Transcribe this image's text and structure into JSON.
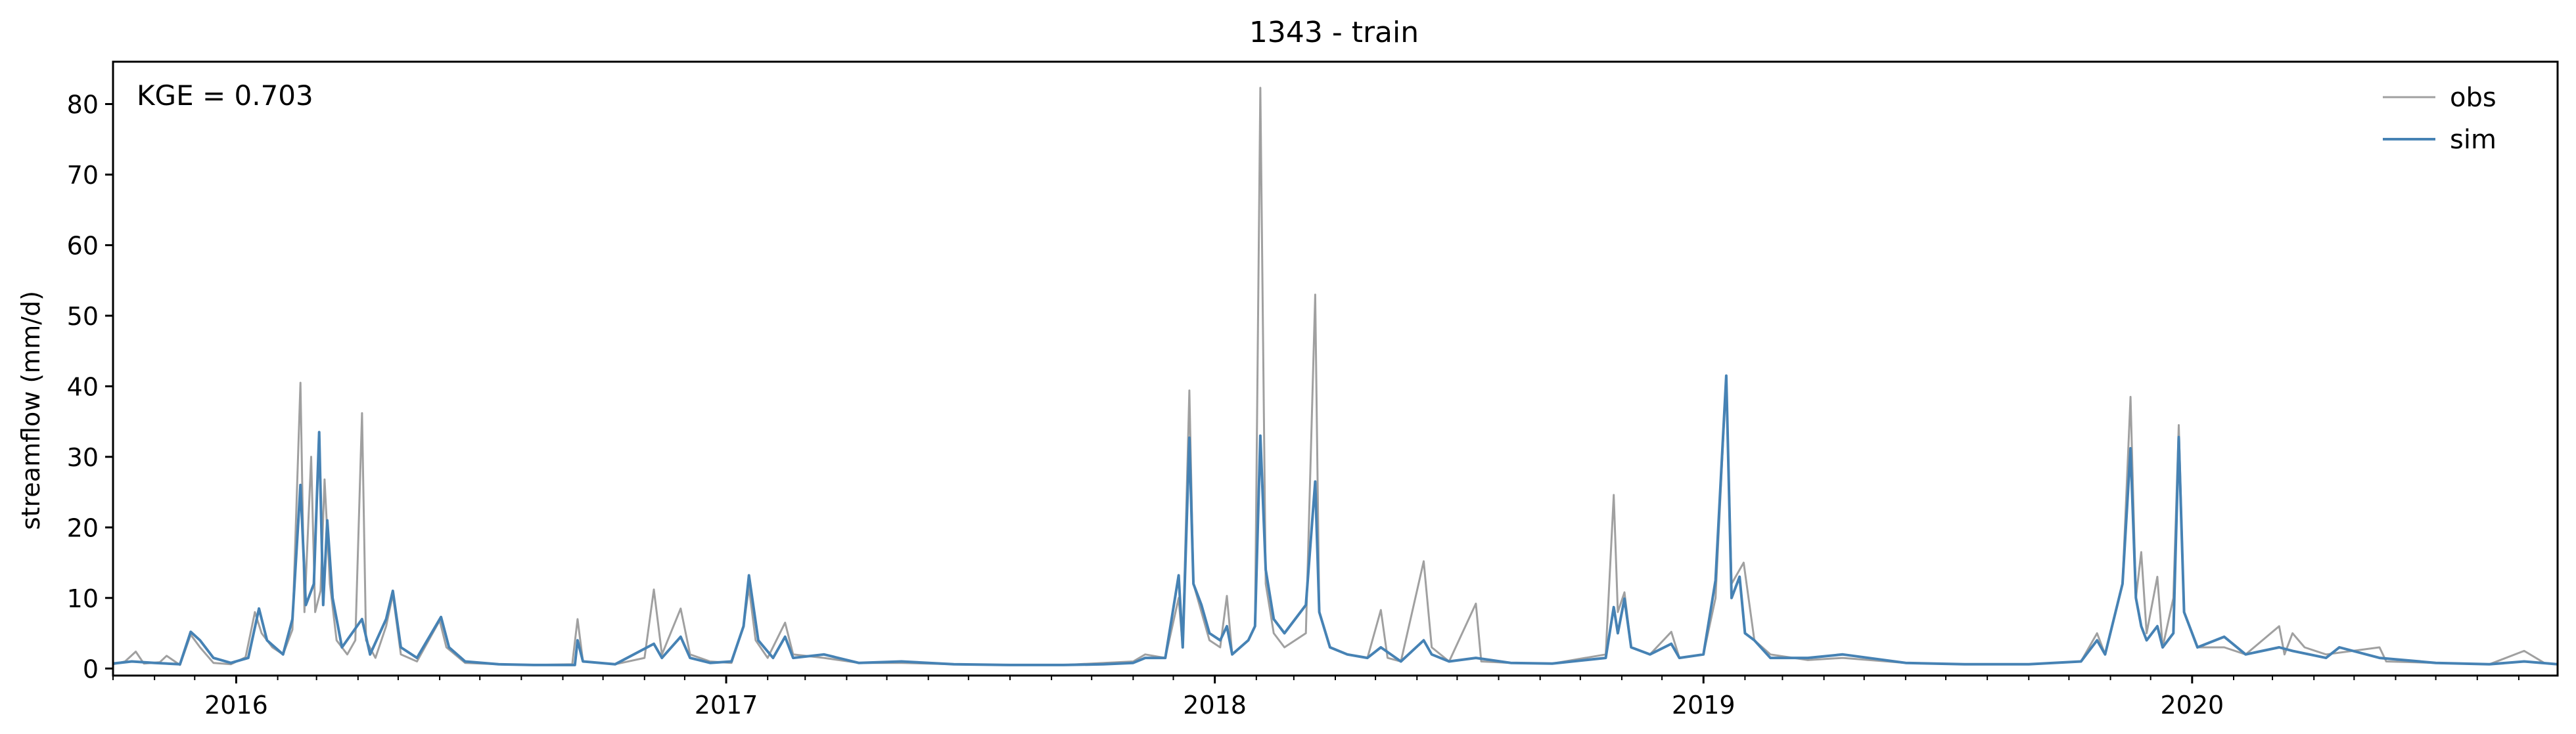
{
  "chart_data": {
    "type": "line",
    "title": "1343 - train",
    "xlabel": "",
    "ylabel": "streamflow (mm/d)",
    "annotation": "KGE = 0.703",
    "legend_placement": "top-right",
    "grid": false,
    "xlim": [
      "2015-10-01",
      "2020-09-30"
    ],
    "ylim": [
      -1,
      86
    ],
    "yticks": [
      0,
      10,
      20,
      30,
      40,
      50,
      60,
      70,
      80
    ],
    "xticks": [
      {
        "date": "2016-01-01",
        "label": "2016"
      },
      {
        "date": "2017-01-01",
        "label": "2017"
      },
      {
        "date": "2018-01-01",
        "label": "2018"
      },
      {
        "date": "2019-01-01",
        "label": "2019"
      },
      {
        "date": "2020-01-01",
        "label": "2020"
      }
    ],
    "series": [
      {
        "name": "obs",
        "color": "#a0a0a0",
        "points": [
          [
            "2015-10-01",
            0.6
          ],
          [
            "2015-10-10",
            1.0
          ],
          [
            "2015-10-18",
            2.4
          ],
          [
            "2015-10-24",
            0.7
          ],
          [
            "2015-11-05",
            0.9
          ],
          [
            "2015-11-10",
            1.8
          ],
          [
            "2015-11-20",
            0.5
          ],
          [
            "2015-11-28",
            4.8
          ],
          [
            "2015-12-05",
            3.0
          ],
          [
            "2015-12-15",
            0.8
          ],
          [
            "2015-12-28",
            0.6
          ],
          [
            "2016-01-08",
            1.6
          ],
          [
            "2016-01-15",
            8.0
          ],
          [
            "2016-01-20",
            5.0
          ],
          [
            "2016-01-28",
            3.0
          ],
          [
            "2016-02-05",
            2.0
          ],
          [
            "2016-02-12",
            5.5
          ],
          [
            "2016-02-18",
            40.5
          ],
          [
            "2016-02-21",
            8.0
          ],
          [
            "2016-02-26",
            30.0
          ],
          [
            "2016-02-29",
            8.0
          ],
          [
            "2016-03-04",
            11.0
          ],
          [
            "2016-03-07",
            26.8
          ],
          [
            "2016-03-11",
            12.0
          ],
          [
            "2016-03-16",
            4.0
          ],
          [
            "2016-03-24",
            2.0
          ],
          [
            "2016-03-30",
            4.0
          ],
          [
            "2016-04-04",
            36.2
          ],
          [
            "2016-04-07",
            4.0
          ],
          [
            "2016-04-14",
            1.5
          ],
          [
            "2016-04-22",
            6.0
          ],
          [
            "2016-04-27",
            10.5
          ],
          [
            "2016-05-03",
            2.0
          ],
          [
            "2016-05-15",
            1.0
          ],
          [
            "2016-06-01",
            6.8
          ],
          [
            "2016-06-06",
            3.0
          ],
          [
            "2016-06-20",
            0.8
          ],
          [
            "2016-07-15",
            0.6
          ],
          [
            "2016-08-10",
            0.5
          ],
          [
            "2016-09-08",
            0.6
          ],
          [
            "2016-09-12",
            7.0
          ],
          [
            "2016-09-16",
            1.0
          ],
          [
            "2016-10-10",
            0.6
          ],
          [
            "2016-11-01",
            1.5
          ],
          [
            "2016-11-08",
            11.2
          ],
          [
            "2016-11-14",
            2.0
          ],
          [
            "2016-11-28",
            8.5
          ],
          [
            "2016-12-05",
            2.0
          ],
          [
            "2016-12-20",
            1.0
          ],
          [
            "2017-01-05",
            0.8
          ],
          [
            "2017-01-14",
            6.0
          ],
          [
            "2017-01-18",
            11.5
          ],
          [
            "2017-01-23",
            4.0
          ],
          [
            "2017-02-01",
            1.5
          ],
          [
            "2017-02-14",
            6.5
          ],
          [
            "2017-02-20",
            2.0
          ],
          [
            "2017-03-15",
            1.5
          ],
          [
            "2017-04-10",
            0.8
          ],
          [
            "2017-05-12",
            0.8
          ],
          [
            "2017-06-20",
            0.6
          ],
          [
            "2017-08-01",
            0.5
          ],
          [
            "2017-09-10",
            0.5
          ],
          [
            "2017-10-10",
            0.8
          ],
          [
            "2017-11-01",
            1.0
          ],
          [
            "2017-11-10",
            2.0
          ],
          [
            "2017-11-25",
            1.5
          ],
          [
            "2017-12-05",
            10.0
          ],
          [
            "2017-12-08",
            3.0
          ],
          [
            "2017-12-13",
            39.4
          ],
          [
            "2017-12-16",
            12.0
          ],
          [
            "2017-12-22",
            8.0
          ],
          [
            "2017-12-28",
            4.0
          ],
          [
            "2018-01-05",
            3.0
          ],
          [
            "2018-01-10",
            10.3
          ],
          [
            "2018-01-14",
            2.0
          ],
          [
            "2018-01-26",
            4.0
          ],
          [
            "2018-01-31",
            6.0
          ],
          [
            "2018-02-04",
            82.3
          ],
          [
            "2018-02-08",
            12.0
          ],
          [
            "2018-02-14",
            5.0
          ],
          [
            "2018-02-22",
            3.0
          ],
          [
            "2018-03-10",
            5.0
          ],
          [
            "2018-03-17",
            53.0
          ],
          [
            "2018-03-20",
            8.0
          ],
          [
            "2018-03-28",
            3.0
          ],
          [
            "2018-04-10",
            2.0
          ],
          [
            "2018-04-25",
            1.5
          ],
          [
            "2018-05-05",
            8.3
          ],
          [
            "2018-05-10",
            1.5
          ],
          [
            "2018-05-20",
            1.0
          ],
          [
            "2018-06-06",
            15.2
          ],
          [
            "2018-06-12",
            3.0
          ],
          [
            "2018-06-25",
            1.0
          ],
          [
            "2018-07-15",
            9.2
          ],
          [
            "2018-07-19",
            1.0
          ],
          [
            "2018-08-10",
            0.8
          ],
          [
            "2018-09-10",
            0.7
          ],
          [
            "2018-10-20",
            2.0
          ],
          [
            "2018-10-26",
            24.6
          ],
          [
            "2018-10-29",
            8.0
          ],
          [
            "2018-11-03",
            10.8
          ],
          [
            "2018-11-08",
            3.0
          ],
          [
            "2018-11-22",
            2.0
          ],
          [
            "2018-12-08",
            5.2
          ],
          [
            "2018-12-14",
            1.5
          ],
          [
            "2019-01-01",
            2.0
          ],
          [
            "2019-01-10",
            10.0
          ],
          [
            "2019-01-18",
            41.5
          ],
          [
            "2019-01-22",
            12.0
          ],
          [
            "2019-01-31",
            15.0
          ],
          [
            "2019-02-08",
            4.0
          ],
          [
            "2019-02-20",
            2.0
          ],
          [
            "2019-03-20",
            1.2
          ],
          [
            "2019-04-15",
            1.5
          ],
          [
            "2019-06-01",
            0.8
          ],
          [
            "2019-07-15",
            0.6
          ],
          [
            "2019-09-01",
            0.6
          ],
          [
            "2019-10-10",
            1.0
          ],
          [
            "2019-10-22",
            5.0
          ],
          [
            "2019-10-28",
            2.0
          ],
          [
            "2019-11-10",
            12.0
          ],
          [
            "2019-11-16",
            38.5
          ],
          [
            "2019-11-20",
            10.0
          ],
          [
            "2019-11-24",
            16.5
          ],
          [
            "2019-11-28",
            5.0
          ],
          [
            "2019-12-06",
            13.0
          ],
          [
            "2019-12-10",
            3.0
          ],
          [
            "2019-12-18",
            10.0
          ],
          [
            "2019-12-22",
            34.5
          ],
          [
            "2019-12-26",
            8.0
          ],
          [
            "2020-01-05",
            3.0
          ],
          [
            "2020-01-25",
            3.0
          ],
          [
            "2020-02-10",
            2.0
          ],
          [
            "2020-03-06",
            6.0
          ],
          [
            "2020-03-10",
            2.0
          ],
          [
            "2020-03-16",
            5.0
          ],
          [
            "2020-03-25",
            3.0
          ],
          [
            "2020-04-10",
            2.0
          ],
          [
            "2020-05-20",
            3.0
          ],
          [
            "2020-05-25",
            1.0
          ],
          [
            "2020-07-01",
            0.8
          ],
          [
            "2020-08-10",
            0.6
          ],
          [
            "2020-09-05",
            2.5
          ],
          [
            "2020-09-20",
            0.8
          ],
          [
            "2020-09-30",
            0.6
          ]
        ]
      },
      {
        "name": "sim",
        "color": "#4682b4",
        "points": [
          [
            "2015-10-01",
            0.7
          ],
          [
            "2015-10-15",
            1.0
          ],
          [
            "2015-11-01",
            0.8
          ],
          [
            "2015-11-20",
            0.6
          ],
          [
            "2015-11-28",
            5.2
          ],
          [
            "2015-12-05",
            4.0
          ],
          [
            "2015-12-15",
            1.5
          ],
          [
            "2015-12-28",
            0.8
          ],
          [
            "2016-01-10",
            1.5
          ],
          [
            "2016-01-18",
            8.5
          ],
          [
            "2016-01-24",
            4.0
          ],
          [
            "2016-02-05",
            2.0
          ],
          [
            "2016-02-12",
            7.0
          ],
          [
            "2016-02-18",
            26.0
          ],
          [
            "2016-02-22",
            9.0
          ],
          [
            "2016-02-28",
            12.0
          ],
          [
            "2016-03-03",
            33.5
          ],
          [
            "2016-03-06",
            9.0
          ],
          [
            "2016-03-09",
            21.0
          ],
          [
            "2016-03-13",
            10.0
          ],
          [
            "2016-03-20",
            3.0
          ],
          [
            "2016-04-04",
            7.0
          ],
          [
            "2016-04-10",
            2.0
          ],
          [
            "2016-04-22",
            7.0
          ],
          [
            "2016-04-27",
            11.0
          ],
          [
            "2016-05-03",
            3.0
          ],
          [
            "2016-05-15",
            1.5
          ],
          [
            "2016-06-02",
            7.3
          ],
          [
            "2016-06-08",
            3.0
          ],
          [
            "2016-06-20",
            1.0
          ],
          [
            "2016-07-15",
            0.6
          ],
          [
            "2016-08-10",
            0.5
          ],
          [
            "2016-09-10",
            0.5
          ],
          [
            "2016-09-12",
            4.0
          ],
          [
            "2016-09-16",
            1.0
          ],
          [
            "2016-10-10",
            0.6
          ],
          [
            "2016-11-08",
            3.5
          ],
          [
            "2016-11-14",
            1.5
          ],
          [
            "2016-11-28",
            4.5
          ],
          [
            "2016-12-05",
            1.5
          ],
          [
            "2016-12-20",
            0.8
          ],
          [
            "2017-01-05",
            1.0
          ],
          [
            "2017-01-14",
            6.0
          ],
          [
            "2017-01-18",
            13.2
          ],
          [
            "2017-01-25",
            4.0
          ],
          [
            "2017-02-05",
            1.5
          ],
          [
            "2017-02-14",
            4.5
          ],
          [
            "2017-02-20",
            1.5
          ],
          [
            "2017-03-15",
            2.0
          ],
          [
            "2017-04-10",
            0.8
          ],
          [
            "2017-05-12",
            1.0
          ],
          [
            "2017-06-20",
            0.6
          ],
          [
            "2017-08-01",
            0.5
          ],
          [
            "2017-09-10",
            0.5
          ],
          [
            "2017-10-10",
            0.6
          ],
          [
            "2017-11-01",
            0.8
          ],
          [
            "2017-11-10",
            1.5
          ],
          [
            "2017-11-25",
            1.5
          ],
          [
            "2017-12-05",
            13.2
          ],
          [
            "2017-12-08",
            3.0
          ],
          [
            "2017-12-13",
            32.7
          ],
          [
            "2017-12-16",
            12.0
          ],
          [
            "2017-12-22",
            9.0
          ],
          [
            "2017-12-28",
            5.0
          ],
          [
            "2018-01-05",
            4.0
          ],
          [
            "2018-01-10",
            6.0
          ],
          [
            "2018-01-14",
            2.0
          ],
          [
            "2018-01-26",
            4.0
          ],
          [
            "2018-01-31",
            6.0
          ],
          [
            "2018-02-04",
            33.0
          ],
          [
            "2018-02-08",
            14.0
          ],
          [
            "2018-02-14",
            7.0
          ],
          [
            "2018-02-22",
            5.0
          ],
          [
            "2018-03-10",
            9.0
          ],
          [
            "2018-03-17",
            26.5
          ],
          [
            "2018-03-20",
            8.0
          ],
          [
            "2018-03-28",
            3.0
          ],
          [
            "2018-04-10",
            2.0
          ],
          [
            "2018-04-25",
            1.5
          ],
          [
            "2018-05-05",
            3.0
          ],
          [
            "2018-05-20",
            1.0
          ],
          [
            "2018-06-06",
            4.0
          ],
          [
            "2018-06-12",
            2.0
          ],
          [
            "2018-06-25",
            1.0
          ],
          [
            "2018-07-15",
            1.5
          ],
          [
            "2018-08-10",
            0.8
          ],
          [
            "2018-09-10",
            0.7
          ],
          [
            "2018-10-20",
            1.5
          ],
          [
            "2018-10-26",
            8.7
          ],
          [
            "2018-10-29",
            5.0
          ],
          [
            "2018-11-03",
            9.9
          ],
          [
            "2018-11-08",
            3.0
          ],
          [
            "2018-11-22",
            2.0
          ],
          [
            "2018-12-08",
            3.5
          ],
          [
            "2018-12-14",
            1.5
          ],
          [
            "2019-01-01",
            2.0
          ],
          [
            "2019-01-10",
            12.5
          ],
          [
            "2019-01-18",
            41.5
          ],
          [
            "2019-01-22",
            10.0
          ],
          [
            "2019-01-28",
            13.0
          ],
          [
            "2019-02-01",
            5.0
          ],
          [
            "2019-02-08",
            4.0
          ],
          [
            "2019-02-20",
            1.5
          ],
          [
            "2019-03-20",
            1.5
          ],
          [
            "2019-04-15",
            2.0
          ],
          [
            "2019-06-01",
            0.8
          ],
          [
            "2019-07-15",
            0.6
          ],
          [
            "2019-09-01",
            0.6
          ],
          [
            "2019-10-10",
            1.0
          ],
          [
            "2019-10-22",
            4.0
          ],
          [
            "2019-10-28",
            2.0
          ],
          [
            "2019-11-10",
            12.0
          ],
          [
            "2019-11-16",
            31.2
          ],
          [
            "2019-11-20",
            10.0
          ],
          [
            "2019-11-24",
            6.0
          ],
          [
            "2019-11-28",
            4.0
          ],
          [
            "2019-12-06",
            6.0
          ],
          [
            "2019-12-10",
            3.0
          ],
          [
            "2019-12-18",
            5.0
          ],
          [
            "2019-12-22",
            32.8
          ],
          [
            "2019-12-26",
            8.0
          ],
          [
            "2020-01-05",
            3.0
          ],
          [
            "2020-01-25",
            4.5
          ],
          [
            "2020-02-10",
            2.0
          ],
          [
            "2020-03-06",
            3.0
          ],
          [
            "2020-03-16",
            2.5
          ],
          [
            "2020-04-10",
            1.5
          ],
          [
            "2020-04-20",
            3.0
          ],
          [
            "2020-05-20",
            1.5
          ],
          [
            "2020-07-01",
            0.8
          ],
          [
            "2020-08-10",
            0.6
          ],
          [
            "2020-09-05",
            1.0
          ],
          [
            "2020-09-30",
            0.6
          ]
        ]
      }
    ]
  }
}
